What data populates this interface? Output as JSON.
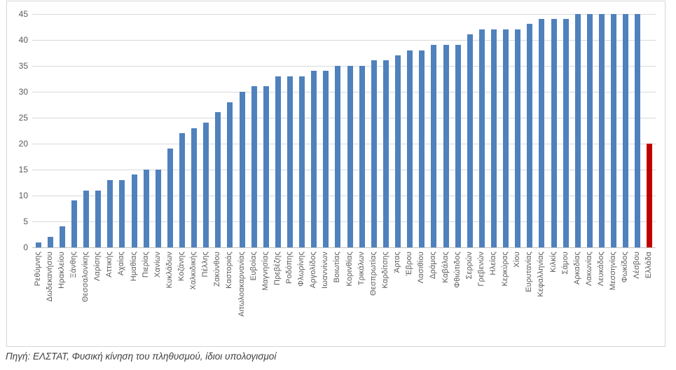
{
  "caption": {
    "text": "Πηγή: ΕΛΣΤΑΤ, Φυσική κίνηση του πληθυσμού, ίδιοι υπολογισμοί"
  },
  "chart_data": {
    "type": "bar",
    "title": "",
    "xlabel": "",
    "ylabel": "",
    "ylim": [
      0,
      45
    ],
    "ytick_step": 5,
    "yticks": [
      0,
      5,
      10,
      15,
      20,
      25,
      30,
      35,
      40,
      45
    ],
    "grid": true,
    "legend": false,
    "bar_color": "#4f81bd",
    "highlight_color": "#c00000",
    "highlight_index": 51,
    "gridline_color": "#d9d9d9",
    "axis_line_color": "#bfbfbf",
    "tick_label_color": "#595959",
    "categories": [
      "Ρεθύμνης",
      "Δωδεκανήσου",
      "Ηρακλείου",
      "Ξάνθης",
      "Θεσσαλονίκης",
      "Λαρίσης",
      "Αττικής",
      "Αχαίας",
      "Ημαθίας",
      "Πιερίας",
      "Χανίων",
      "Κυκλάδων",
      "Κοζάνης",
      "Χαλκιδικής",
      "Πέλλης",
      "Ζακύνθου",
      "Καστοριάς",
      "Αιτωλοακαρνανίας",
      "Ευβοίας",
      "Μαγνησίας",
      "Πρεβέζης",
      "Ροδόπης",
      "Φλωρίνης",
      "Αργολίδος",
      "Ιωαννίνων",
      "Βοιωτίας",
      "Κορινθίας",
      "Τρικάλων",
      "Θεσπρωτίας",
      "Καρδίτσης",
      "Άρτας",
      "Έβρου",
      "Λασιθίου",
      "Δράμας",
      "Καβάλας",
      "Φθιώτιδος",
      "Σερρών",
      "Γρεβενών",
      "Ηλείας",
      "Κερκύρας",
      "Χίου",
      "Ευρυτανίας",
      "Κεφαλληνίας",
      "Κιλκίς",
      "Σάμου",
      "Αρκαδίας",
      "Λακωνίας",
      "Λευκάδος",
      "Μεσσηνίας",
      "Φωκίδος",
      "Λέσβου",
      "Ελλάδα"
    ],
    "values": [
      1,
      2,
      4,
      9,
      11,
      11,
      13,
      13,
      14,
      15,
      15,
      19,
      22,
      23,
      24,
      26,
      28,
      30,
      31,
      31,
      33,
      33,
      33,
      34,
      34,
      35,
      35,
      35,
      36,
      36,
      37,
      38,
      38,
      39,
      39,
      39,
      41,
      42,
      42,
      42,
      42,
      43,
      44,
      44,
      44,
      45,
      45,
      45,
      45,
      45,
      45,
      20
    ]
  }
}
